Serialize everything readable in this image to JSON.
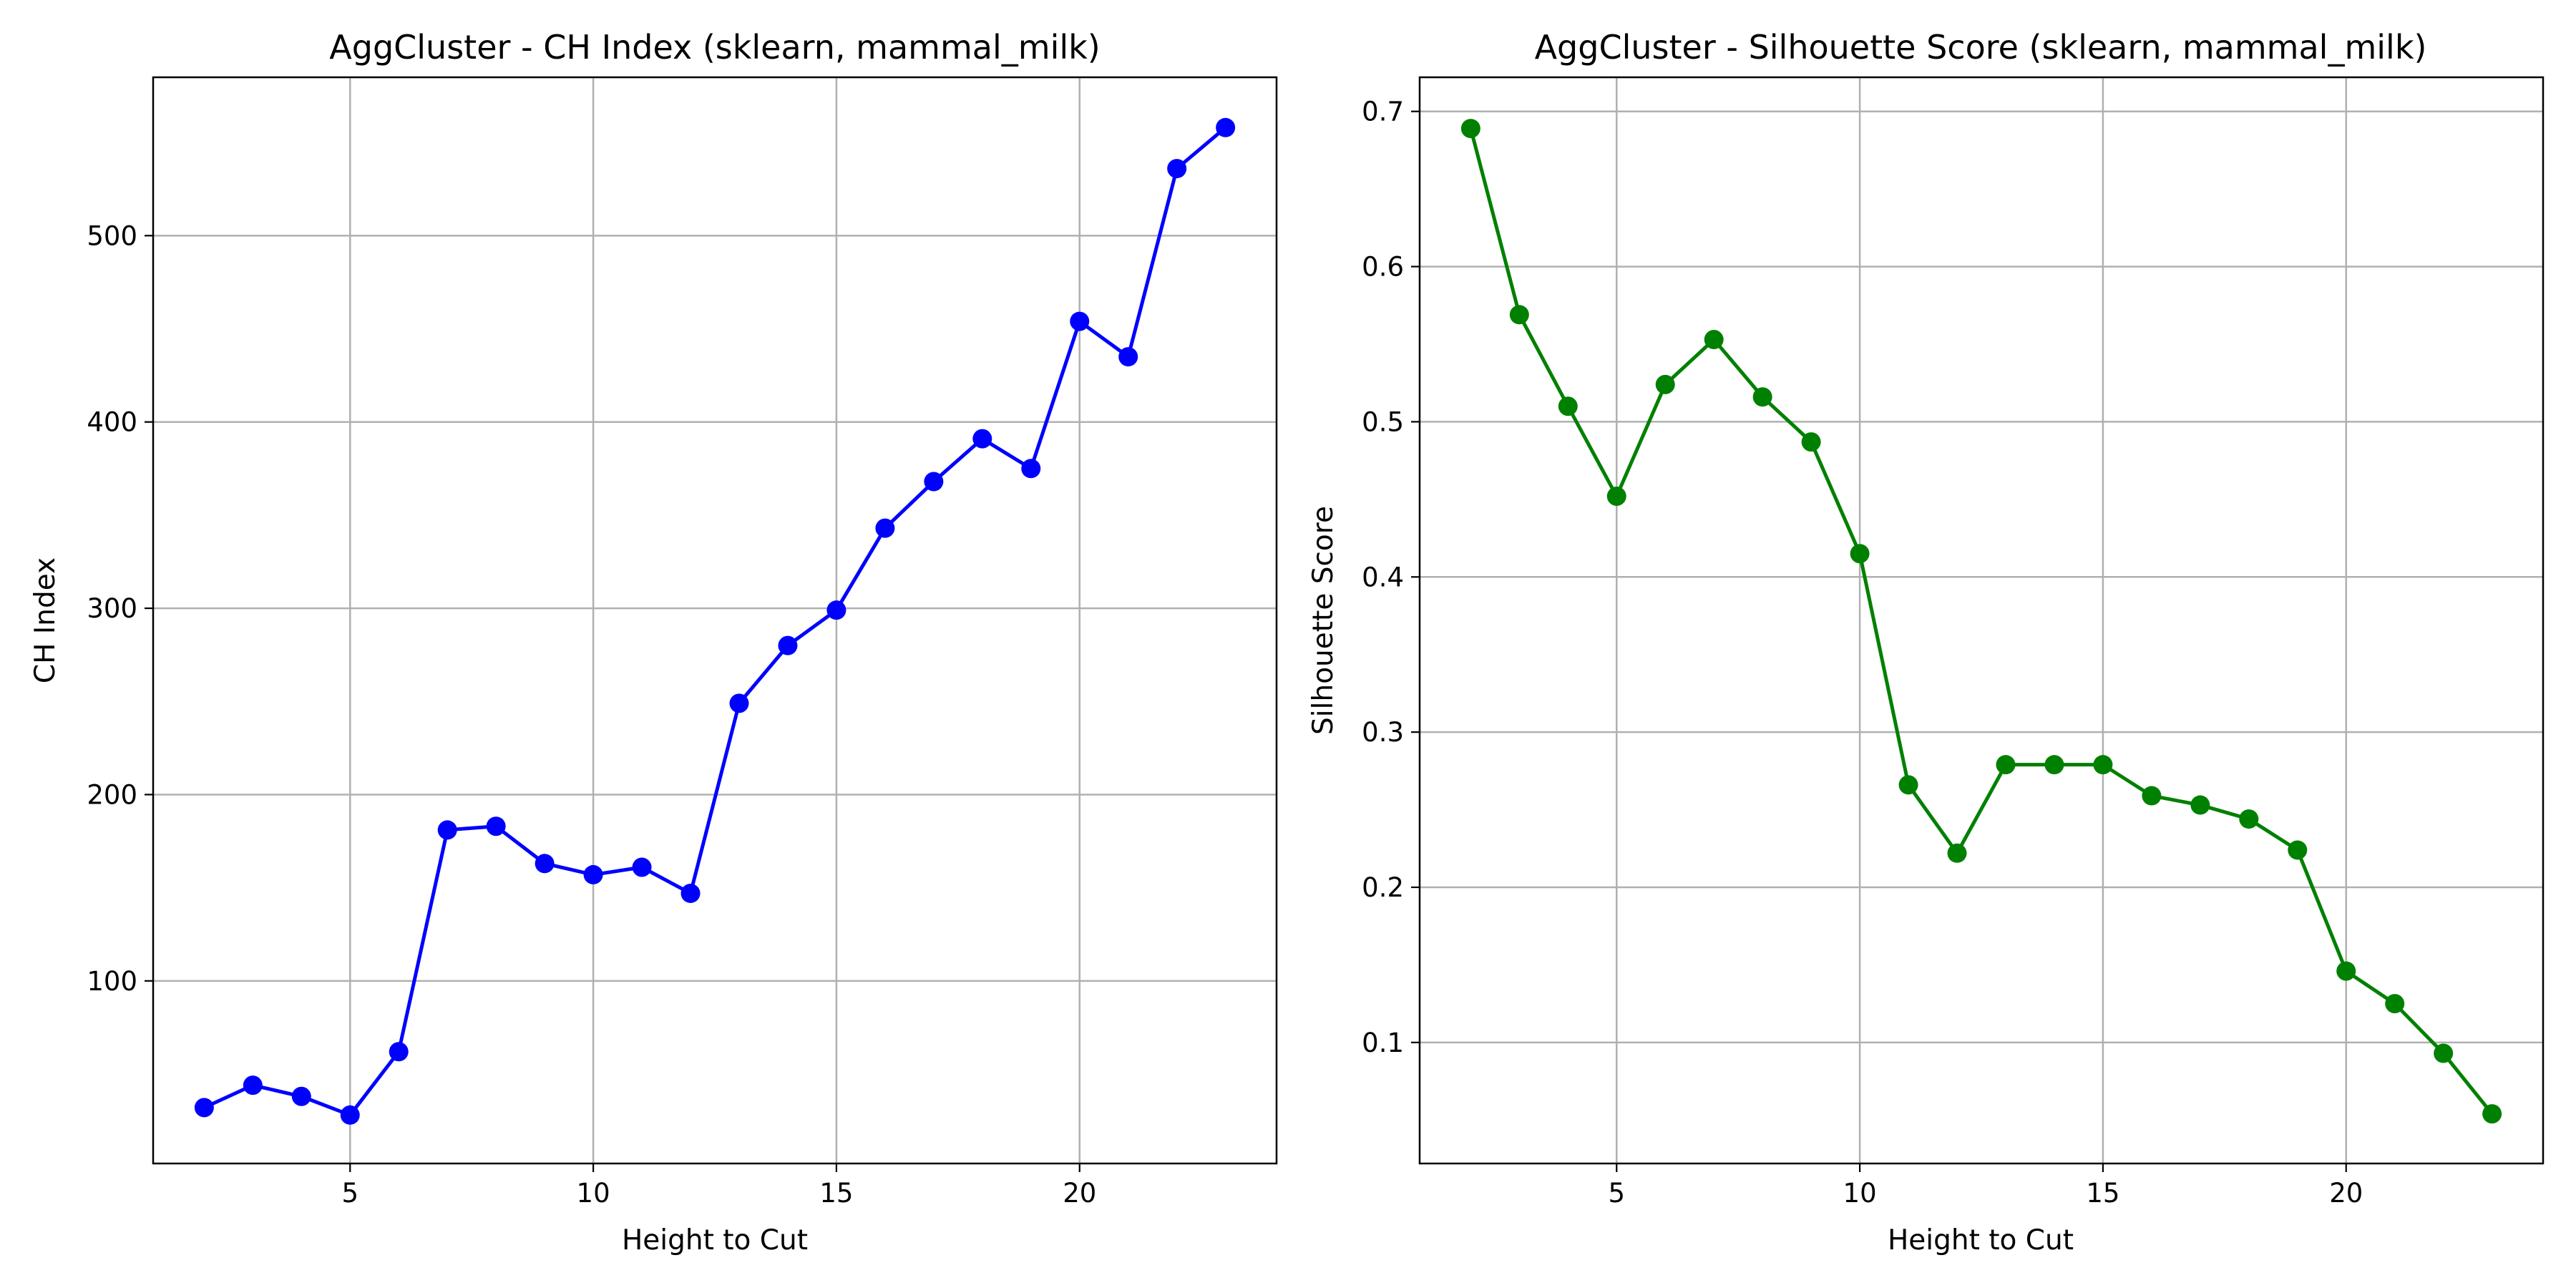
{
  "chart_data": [
    {
      "type": "line",
      "title": "AggCluster - CH Index (sklearn, mammal_milk)",
      "xlabel": "Height to Cut",
      "ylabel": "CH Index",
      "xlim": [
        0.95,
        24.05
      ],
      "ylim": [
        2,
        585
      ],
      "xticks": [
        5,
        10,
        15,
        20
      ],
      "yticks": [
        100,
        200,
        300,
        400,
        500
      ],
      "grid": true,
      "legend": "none",
      "color": "#0000ff",
      "marker": "circle",
      "x": [
        2,
        3,
        4,
        5,
        6,
        7,
        8,
        9,
        10,
        11,
        12,
        13,
        14,
        15,
        16,
        17,
        18,
        19,
        20,
        21,
        22,
        23
      ],
      "y": [
        32,
        44,
        38,
        28,
        62,
        181,
        183,
        163,
        157,
        161,
        147,
        249,
        280,
        299,
        343,
        368,
        391,
        375,
        454,
        435,
        536,
        558
      ]
    },
    {
      "type": "line",
      "title": "AggCluster - Silhouette Score (sklearn, mammal_milk)",
      "xlabel": "Height to Cut",
      "ylabel": "Silhouette Score",
      "xlim": [
        0.95,
        24.05
      ],
      "ylim": [
        0.022,
        0.722
      ],
      "xticks": [
        5,
        10,
        15,
        20
      ],
      "yticks": [
        0.1,
        0.2,
        0.3,
        0.4,
        0.5,
        0.6,
        0.7
      ],
      "grid": true,
      "legend": "none",
      "color": "#008000",
      "marker": "circle",
      "x": [
        2,
        3,
        4,
        5,
        6,
        7,
        8,
        9,
        10,
        11,
        12,
        13,
        14,
        15,
        16,
        17,
        18,
        19,
        20,
        21,
        22,
        23
      ],
      "y": [
        0.689,
        0.569,
        0.51,
        0.452,
        0.524,
        0.553,
        0.516,
        0.487,
        0.415,
        0.266,
        0.222,
        0.279,
        0.279,
        0.279,
        0.259,
        0.253,
        0.244,
        0.224,
        0.146,
        0.125,
        0.093,
        0.054
      ]
    }
  ]
}
